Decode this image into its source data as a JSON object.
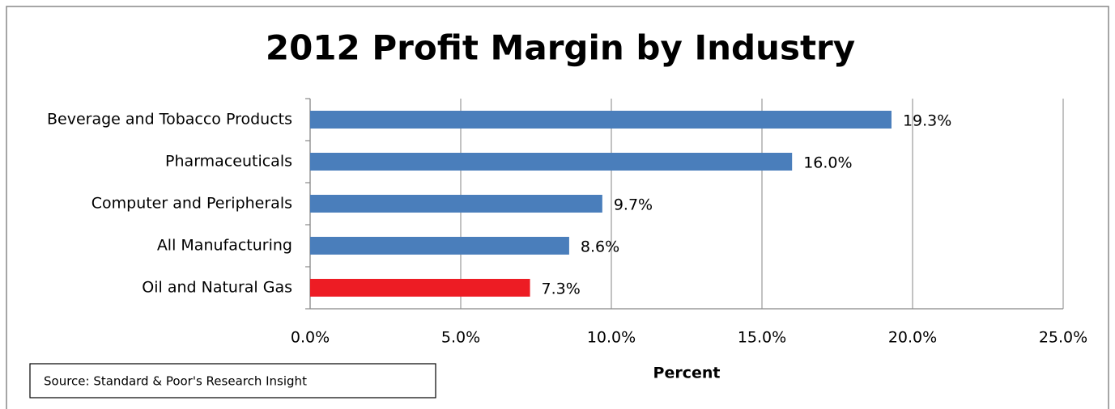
{
  "chart_data": {
    "type": "hbar",
    "title": "2012 Profit Margin by Industry",
    "categories": [
      "Beverage and Tobacco Products",
      "Pharmaceuticals",
      "Computer and Peripherals",
      "All Manufacturing",
      "Oil and Natural Gas"
    ],
    "values": [
      19.3,
      16.0,
      9.7,
      8.6,
      7.3
    ],
    "value_labels": [
      "19.3%",
      "16.0%",
      "9.7%",
      "8.6%",
      "7.3%"
    ],
    "colors": [
      "#4a7ebb",
      "#4a7ebb",
      "#4a7ebb",
      "#4a7ebb",
      "#ed1c24"
    ],
    "xlim": [
      0,
      25
    ],
    "xticks": [
      {
        "value": 0,
        "label": "0.0%"
      },
      {
        "value": 5,
        "label": "5.0%"
      },
      {
        "value": 10,
        "label": "10.0%"
      },
      {
        "value": 15,
        "label": "15.0%"
      },
      {
        "value": 20,
        "label": "20.0%"
      },
      {
        "value": 25,
        "label": "25.0%"
      }
    ],
    "xlabel": "Percent",
    "source": "Source: Standard & Poor's Research Insight",
    "grid": true
  }
}
